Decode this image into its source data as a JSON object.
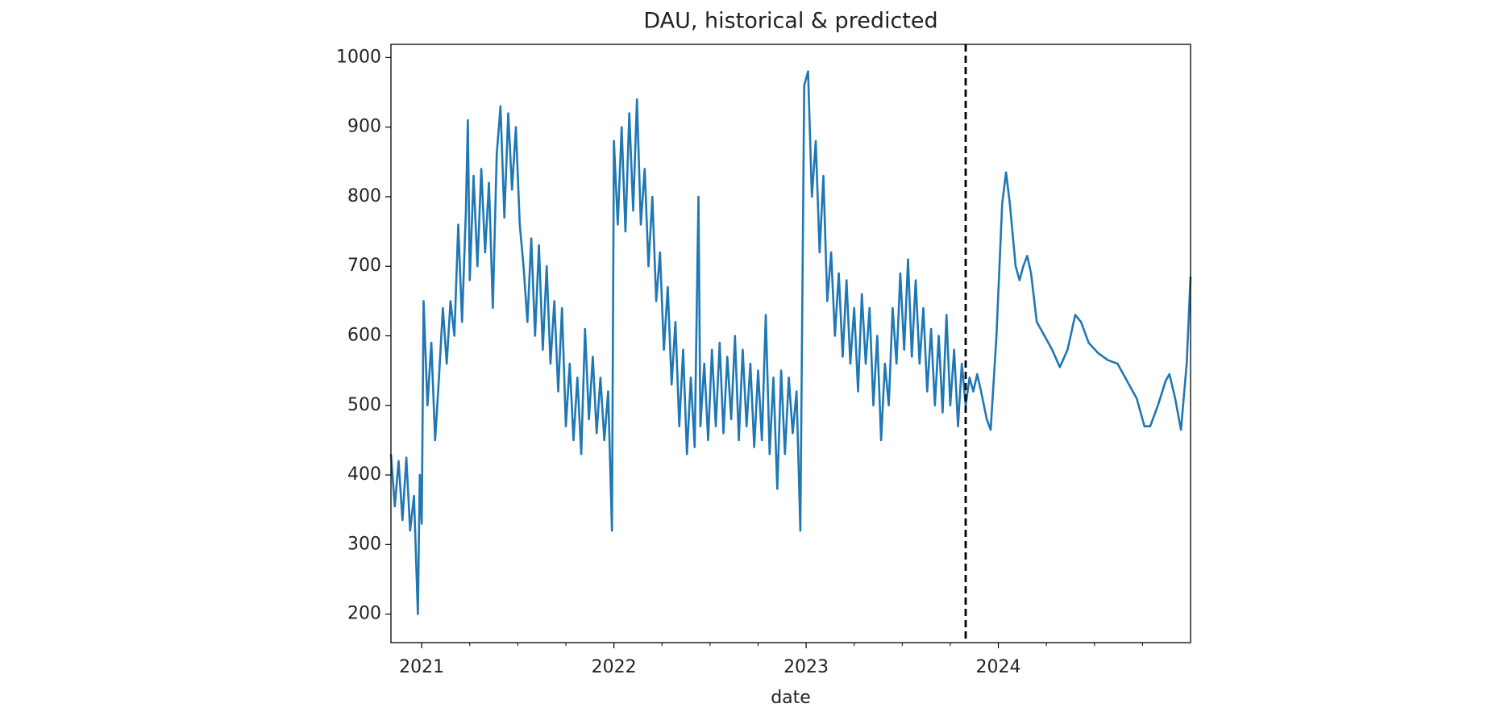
{
  "chart_data": {
    "type": "line",
    "title": "DAU, historical & predicted",
    "xlabel": "date",
    "x": [
      2020.84,
      2020.86,
      2020.88,
      2020.9,
      2020.92,
      2020.94,
      2020.96,
      2020.98,
      2020.99,
      2021.0,
      2021.01,
      2021.03,
      2021.05,
      2021.07,
      2021.09,
      2021.11,
      2021.13,
      2021.15,
      2021.17,
      2021.19,
      2021.21,
      2021.23,
      2021.24,
      2021.25,
      2021.27,
      2021.29,
      2021.31,
      2021.33,
      2021.35,
      2021.37,
      2021.39,
      2021.41,
      2021.43,
      2021.45,
      2021.47,
      2021.49,
      2021.51,
      2021.53,
      2021.55,
      2021.57,
      2021.59,
      2021.61,
      2021.63,
      2021.65,
      2021.67,
      2021.69,
      2021.71,
      2021.73,
      2021.75,
      2021.77,
      2021.79,
      2021.81,
      2021.83,
      2021.85,
      2021.87,
      2021.89,
      2021.91,
      2021.93,
      2021.95,
      2021.97,
      2021.99,
      2022.0,
      2022.02,
      2022.04,
      2022.06,
      2022.08,
      2022.1,
      2022.12,
      2022.14,
      2022.16,
      2022.18,
      2022.2,
      2022.22,
      2022.24,
      2022.26,
      2022.28,
      2022.3,
      2022.32,
      2022.34,
      2022.36,
      2022.38,
      2022.4,
      2022.42,
      2022.44,
      2022.45,
      2022.47,
      2022.49,
      2022.51,
      2022.53,
      2022.55,
      2022.57,
      2022.59,
      2022.61,
      2022.63,
      2022.65,
      2022.67,
      2022.69,
      2022.71,
      2022.73,
      2022.75,
      2022.77,
      2022.79,
      2022.81,
      2022.83,
      2022.85,
      2022.87,
      2022.89,
      2022.91,
      2022.93,
      2022.95,
      2022.97,
      2022.99,
      2023.01,
      2023.03,
      2023.05,
      2023.07,
      2023.09,
      2023.11,
      2023.13,
      2023.15,
      2023.17,
      2023.19,
      2023.21,
      2023.23,
      2023.25,
      2023.27,
      2023.29,
      2023.31,
      2023.33,
      2023.35,
      2023.37,
      2023.39,
      2023.41,
      2023.43,
      2023.45,
      2023.47,
      2023.49,
      2023.51,
      2023.53,
      2023.55,
      2023.57,
      2023.59,
      2023.61,
      2023.63,
      2023.65,
      2023.67,
      2023.69,
      2023.71,
      2023.73,
      2023.75,
      2023.77,
      2023.79,
      2023.81,
      2023.83,
      2023.85,
      2023.87,
      2023.89,
      2023.91,
      2023.94,
      2023.96,
      2023.99,
      2024.02,
      2024.04,
      2024.06,
      2024.09,
      2024.11,
      2024.13,
      2024.15,
      2024.17,
      2024.2,
      2024.24,
      2024.28,
      2024.32,
      2024.36,
      2024.4,
      2024.43,
      2024.47,
      2024.52,
      2024.57,
      2024.62,
      2024.67,
      2024.72,
      2024.76,
      2024.79,
      2024.83,
      2024.87,
      2024.89,
      2024.92,
      2024.95,
      2024.98,
      2025.0
    ],
    "series": [
      {
        "color": "#1f77b4",
        "values": [
          430,
          355,
          420,
          335,
          425,
          320,
          370,
          200,
          400,
          330,
          650,
          500,
          590,
          450,
          540,
          640,
          560,
          650,
          600,
          760,
          620,
          780,
          910,
          680,
          830,
          700,
          840,
          720,
          820,
          640,
          860,
          930,
          770,
          920,
          810,
          900,
          760,
          700,
          620,
          740,
          600,
          730,
          580,
          700,
          560,
          650,
          520,
          640,
          470,
          560,
          450,
          540,
          430,
          610,
          480,
          570,
          460,
          540,
          450,
          520,
          320,
          880,
          760,
          900,
          750,
          920,
          780,
          940,
          760,
          840,
          700,
          800,
          650,
          720,
          580,
          670,
          530,
          620,
          470,
          580,
          430,
          540,
          440,
          800,
          470,
          560,
          450,
          580,
          470,
          590,
          460,
          570,
          480,
          600,
          450,
          580,
          470,
          560,
          440,
          550,
          450,
          630,
          430,
          540,
          380,
          550,
          430,
          540,
          460,
          520,
          320,
          960,
          980,
          800,
          880,
          720,
          830,
          650,
          720,
          600,
          690,
          570,
          680,
          560,
          640,
          520,
          660,
          560,
          640,
          500,
          600,
          450,
          560,
          500,
          640,
          560,
          690,
          580,
          710,
          570,
          680,
          560,
          640,
          520,
          610,
          500,
          600,
          490,
          630,
          500,
          580,
          470,
          560,
          500,
          540,
          520,
          545,
          520,
          480,
          465,
          600,
          790,
          835,
          790,
          700,
          680,
          700,
          715,
          690,
          620,
          600,
          580,
          555,
          580,
          630,
          620,
          590,
          575,
          565,
          560,
          535,
          510,
          470,
          470,
          500,
          535,
          545,
          510,
          465,
          560,
          685
        ]
      }
    ],
    "vline": {
      "x": 2023.83,
      "color": "#000000"
    },
    "xlim": [
      2020.84,
      2025.0
    ],
    "xticks": [
      2021,
      2022,
      2023,
      2024
    ],
    "xminorticks": [
      2021.25,
      2021.5,
      2021.75,
      2022.25,
      2022.5,
      2022.75,
      2023.25,
      2023.5,
      2023.75,
      2024.25,
      2024.5,
      2024.75
    ],
    "ylim": [
      159,
      1019
    ],
    "yticks": [
      200,
      300,
      400,
      500,
      600,
      700,
      800,
      900,
      1000
    ]
  }
}
